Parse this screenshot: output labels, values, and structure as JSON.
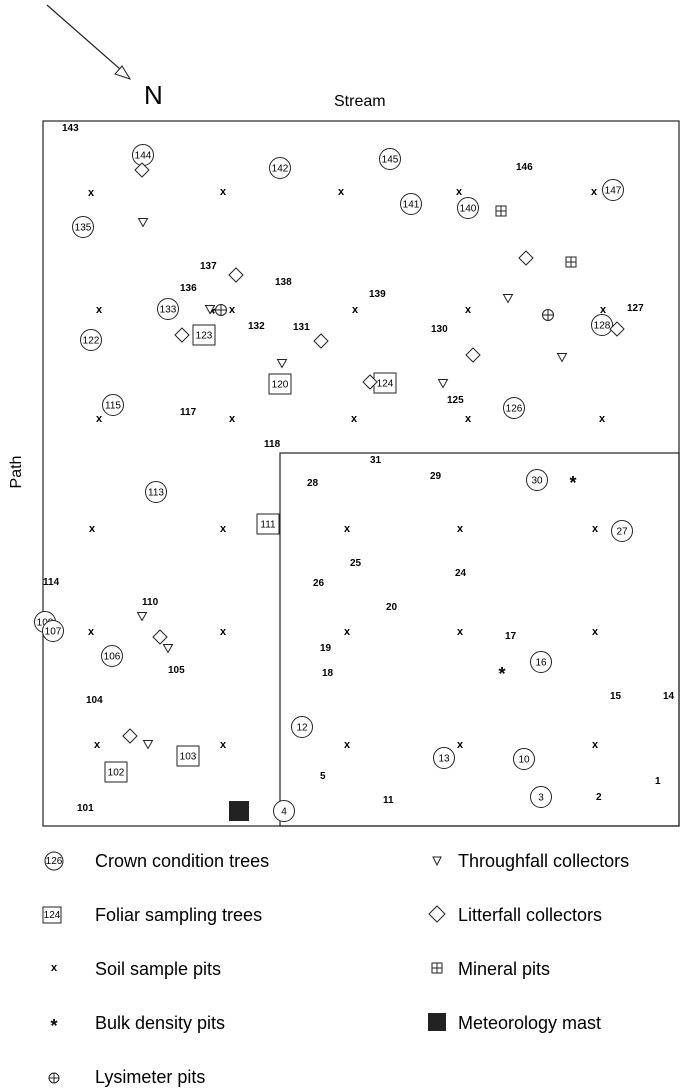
{
  "north_label": "N",
  "stream_label": "Stream",
  "path_label": "Path",
  "plot_numbers": [
    "143",
    "146",
    "137",
    "136",
    "138",
    "139",
    "132",
    "131",
    "130",
    "127",
    "117",
    "125",
    "118",
    "28",
    "31",
    "29",
    "114",
    "110",
    "25",
    "24",
    "26",
    "20",
    "19",
    "17",
    "18",
    "105",
    "104",
    "15",
    "14",
    "5",
    "11",
    "2",
    "1",
    "101"
  ],
  "crown_trees": [
    "144",
    "142",
    "145",
    "141",
    "140",
    "147",
    "135",
    "133",
    "122",
    "128",
    "115",
    "126",
    "113",
    "30",
    "27",
    "108",
    "107",
    "106",
    "16",
    "12",
    "13",
    "10",
    "3",
    "4"
  ],
  "foliar_trees": [
    "123",
    "120",
    "124",
    "111",
    "103",
    "102"
  ],
  "legend": [
    {
      "symbol": "crown-icon",
      "sample": "126",
      "label": "Crown condition trees"
    },
    {
      "symbol": "foliar-icon",
      "sample": "124",
      "label": "Foliar sampling trees"
    },
    {
      "symbol": "soil-pit-icon",
      "sample": "x",
      "label": "Soil sample pits"
    },
    {
      "symbol": "bulk-density-icon",
      "sample": "*",
      "label": "Bulk density pits"
    },
    {
      "symbol": "lysimeter-icon",
      "sample": "⊕",
      "label": "Lysimeter pits"
    },
    {
      "symbol": "throughfall-icon",
      "sample": "▿",
      "label": "Throughfall collectors"
    },
    {
      "symbol": "litterfall-icon",
      "sample": "◇",
      "label": "Litterfall collectors"
    },
    {
      "symbol": "mineral-pit-icon",
      "sample": "⊞",
      "label": "Mineral pits"
    },
    {
      "symbol": "meteorology-mast-icon",
      "sample": "■",
      "label": "Meteorology mast"
    }
  ]
}
